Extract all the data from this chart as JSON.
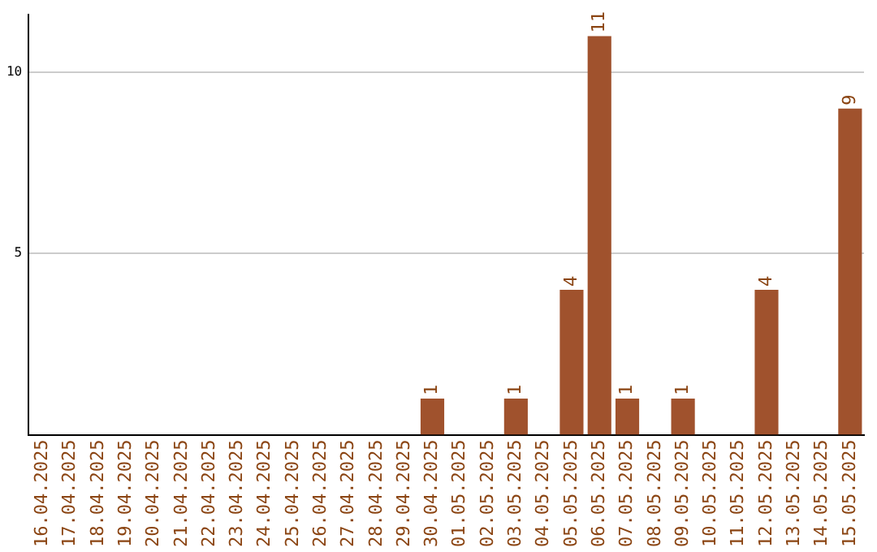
{
  "chart_data": {
    "type": "bar",
    "categories": [
      "16.04.2025",
      "17.04.2025",
      "18.04.2025",
      "19.04.2025",
      "20.04.2025",
      "21.04.2025",
      "22.04.2025",
      "23.04.2025",
      "24.04.2025",
      "25.04.2025",
      "26.04.2025",
      "27.04.2025",
      "28.04.2025",
      "29.04.2025",
      "30.04.2025",
      "01.05.2025",
      "02.05.2025",
      "03.05.2025",
      "04.05.2025",
      "05.05.2025",
      "06.05.2025",
      "07.05.2025",
      "08.05.2025",
      "09.05.2025",
      "10.05.2025",
      "11.05.2025",
      "12.05.2025",
      "13.05.2025",
      "14.05.2025",
      "15.05.2025"
    ],
    "values": [
      0,
      0,
      0,
      0,
      0,
      0,
      0,
      0,
      0,
      0,
      0,
      0,
      0,
      0,
      1,
      0,
      0,
      1,
      0,
      4,
      11,
      1,
      0,
      1,
      0,
      0,
      4,
      0,
      0,
      9
    ],
    "value_labels": [
      null,
      null,
      null,
      null,
      null,
      null,
      null,
      null,
      null,
      null,
      null,
      null,
      null,
      null,
      "1",
      null,
      null,
      "1",
      null,
      "4",
      "11",
      "1",
      null,
      "1",
      null,
      null,
      "4",
      null,
      null,
      "9"
    ],
    "color": "#a0522d",
    "ylim": [
      0,
      11.6
    ],
    "yticks": [
      5,
      10
    ],
    "grid": "y",
    "legend": false
  }
}
